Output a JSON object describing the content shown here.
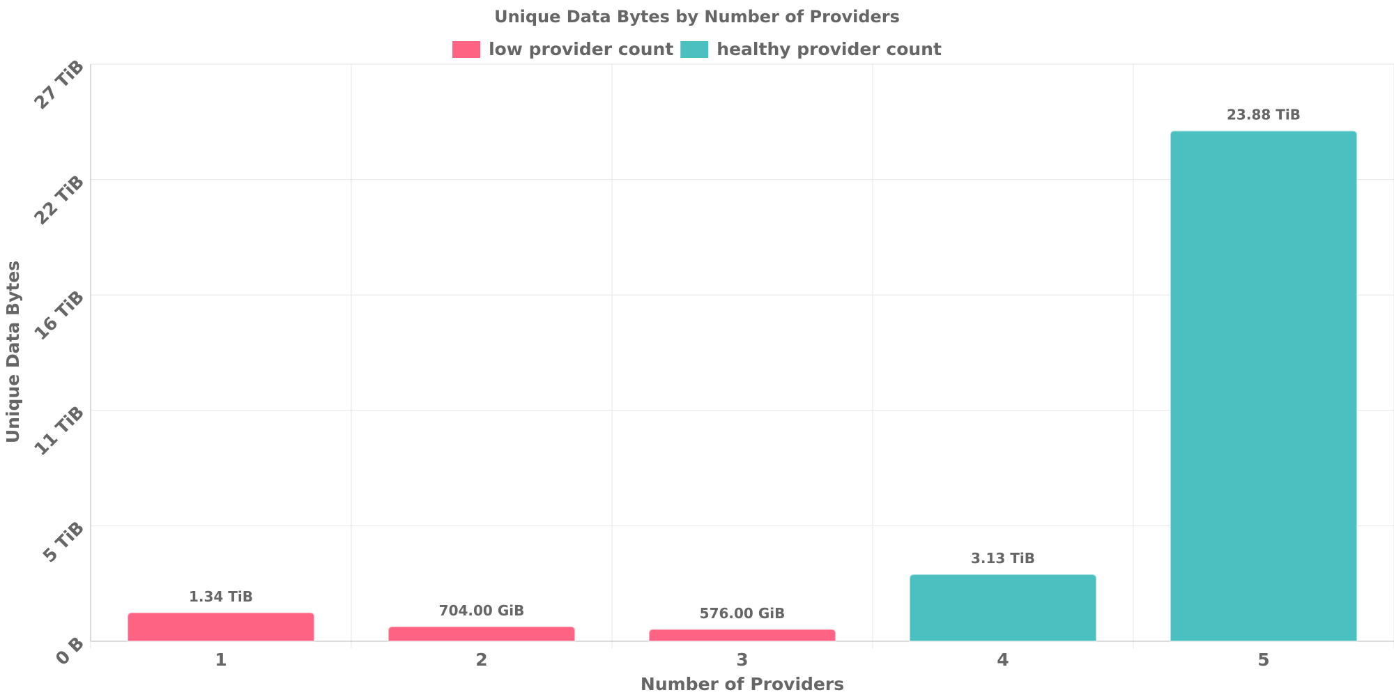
{
  "chart_data": {
    "type": "bar",
    "title": "Unique Data Bytes by Number of Providers",
    "xlabel": "Number of Providers",
    "ylabel": "Unique Data Bytes",
    "categories": [
      "1",
      "2",
      "3",
      "4",
      "5"
    ],
    "values_tib": [
      1.34,
      0.6875,
      0.5625,
      3.13,
      23.88
    ],
    "data_labels": [
      "1.34 TiB",
      "704.00 GiB",
      "576.00 GiB",
      "3.13 TiB",
      "23.88 TiB"
    ],
    "bar_series": [
      "low provider count",
      "low provider count",
      "low provider count",
      "healthy provider count",
      "healthy provider count"
    ],
    "series": [
      {
        "name": "low provider count",
        "color": "#ff6384"
      },
      {
        "name": "healthy provider count",
        "color": "#4bc0c0"
      }
    ],
    "y_ticks": [
      {
        "value": 0,
        "label": "0 B"
      },
      {
        "value": 5.4,
        "label": "5 TiB"
      },
      {
        "value": 10.8,
        "label": "11 TiB"
      },
      {
        "value": 16.2,
        "label": "16 TiB"
      },
      {
        "value": 21.6,
        "label": "22 TiB"
      },
      {
        "value": 27,
        "label": "27 TiB"
      }
    ],
    "ylim": [
      0,
      27
    ],
    "grid": true,
    "legend_position": "top"
  }
}
